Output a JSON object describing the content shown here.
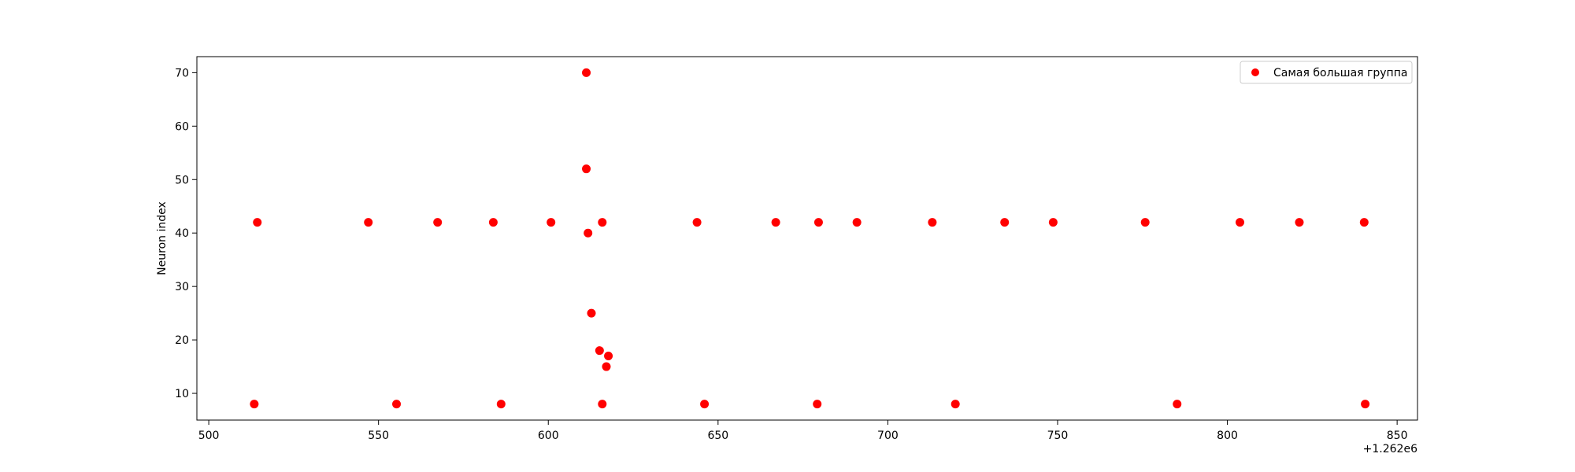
{
  "chart_data": {
    "type": "scatter",
    "title": "",
    "xlabel": "",
    "ylabel": "Neuron index",
    "x_offset_label": "+1.262e6",
    "xlim": [
      1262496.5,
      1262856.0
    ],
    "ylim": [
      5.0,
      73.0
    ],
    "xticks": [
      500,
      550,
      600,
      650,
      700,
      750,
      800,
      850
    ],
    "yticks": [
      10,
      20,
      30,
      40,
      50,
      60,
      70
    ],
    "grid": false,
    "legend": {
      "position": "top-right"
    },
    "color": "#ff0000",
    "series": [
      {
        "name": "Самая большая группа",
        "points": [
          {
            "x": 1262513.4,
            "y": 8
          },
          {
            "x": 1262514.3,
            "y": 42
          },
          {
            "x": 1262547.0,
            "y": 42
          },
          {
            "x": 1262555.3,
            "y": 8
          },
          {
            "x": 1262567.4,
            "y": 42
          },
          {
            "x": 1262583.8,
            "y": 42
          },
          {
            "x": 1262586.1,
            "y": 8
          },
          {
            "x": 1262600.8,
            "y": 42
          },
          {
            "x": 1262611.2,
            "y": 70
          },
          {
            "x": 1262611.2,
            "y": 52
          },
          {
            "x": 1262611.7,
            "y": 40
          },
          {
            "x": 1262612.7,
            "y": 25
          },
          {
            "x": 1262615.1,
            "y": 18
          },
          {
            "x": 1262615.9,
            "y": 42
          },
          {
            "x": 1262615.9,
            "y": 8
          },
          {
            "x": 1262617.1,
            "y": 15
          },
          {
            "x": 1262617.7,
            "y": 17
          },
          {
            "x": 1262643.8,
            "y": 42
          },
          {
            "x": 1262646.0,
            "y": 8
          },
          {
            "x": 1262667.0,
            "y": 42
          },
          {
            "x": 1262679.2,
            "y": 8
          },
          {
            "x": 1262679.6,
            "y": 42
          },
          {
            "x": 1262690.9,
            "y": 42
          },
          {
            "x": 1262713.1,
            "y": 42
          },
          {
            "x": 1262719.9,
            "y": 8
          },
          {
            "x": 1262734.4,
            "y": 42
          },
          {
            "x": 1262748.7,
            "y": 42
          },
          {
            "x": 1262775.8,
            "y": 42
          },
          {
            "x": 1262785.2,
            "y": 8
          },
          {
            "x": 1262803.7,
            "y": 42
          },
          {
            "x": 1262821.2,
            "y": 42
          },
          {
            "x": 1262840.3,
            "y": 42
          },
          {
            "x": 1262840.6,
            "y": 8
          }
        ]
      }
    ]
  }
}
